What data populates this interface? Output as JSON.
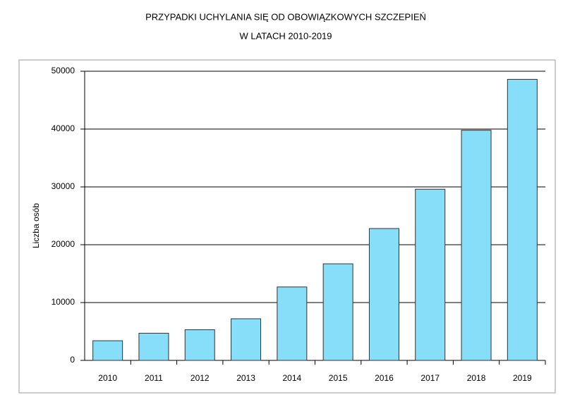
{
  "chart_data": {
    "type": "bar",
    "title": "PRZYPADKI UCHYLANIA SIĘ OD OBOWIĄZKOWYCH SZCZEPIEŃ",
    "subtitle": "W LATACH 2010-2019",
    "y_label": "Liczba osób",
    "categories": [
      "2010",
      "2011",
      "2012",
      "2013",
      "2014",
      "2015",
      "2016",
      "2017",
      "2018",
      "2019"
    ],
    "values": [
      3400,
      4700,
      5300,
      7200,
      12700,
      16700,
      22800,
      29600,
      39800,
      48600
    ],
    "color": "#87def8",
    "ylim": [
      0,
      50000
    ],
    "yticks": [
      0,
      10000,
      20000,
      30000,
      40000,
      50000
    ],
    "grid": true
  }
}
